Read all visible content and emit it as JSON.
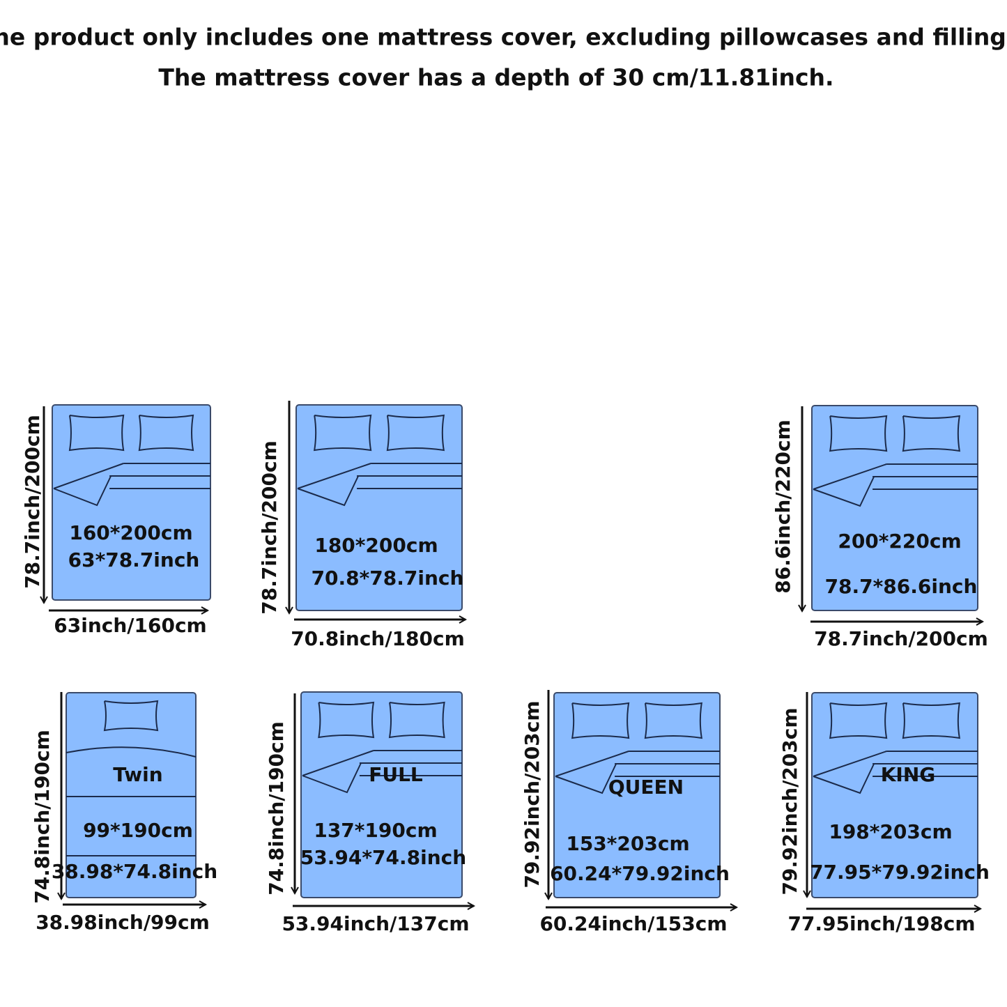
{
  "header": {
    "line1": "The product only includes one mattress cover, excluding pillowcases and fillings.",
    "line2": "The mattress cover has a depth of 30 cm/11.81inch."
  },
  "beds": [
    {
      "cm": "160*200cm",
      "inch": "63*78.7inch",
      "width": "63inch/160cm",
      "length": "78.7inch/200cm"
    },
    {
      "cm": "180*200cm",
      "inch": "70.8*78.7inch",
      "width": "70.8inch/180cm",
      "length": "78.7inch/200cm"
    },
    {
      "cm": "200*220cm",
      "inch": "78.7*86.6inch",
      "width": "78.7inch/200cm",
      "length": "86.6inch/220cm"
    },
    {
      "name": "Twin",
      "cm": "99*190cm",
      "inch": "38.98*74.8inch",
      "width": "38.98inch/99cm",
      "length": "74.8inch/190cm"
    },
    {
      "name": "FULL",
      "cm": "137*190cm",
      "inch": "53.94*74.8inch",
      "width": "53.94inch/137cm",
      "length": "74.8inch/190cm"
    },
    {
      "name": "QUEEN",
      "cm": "153*203cm",
      "inch": "60.24*79.92inch",
      "width": "60.24inch/153cm",
      "length": "79.92inch/203cm"
    },
    {
      "name": "KING",
      "cm": "198*203cm",
      "inch": "77.95*79.92inch",
      "width": "77.95inch/198cm",
      "length": "79.92inch/203cm"
    }
  ]
}
